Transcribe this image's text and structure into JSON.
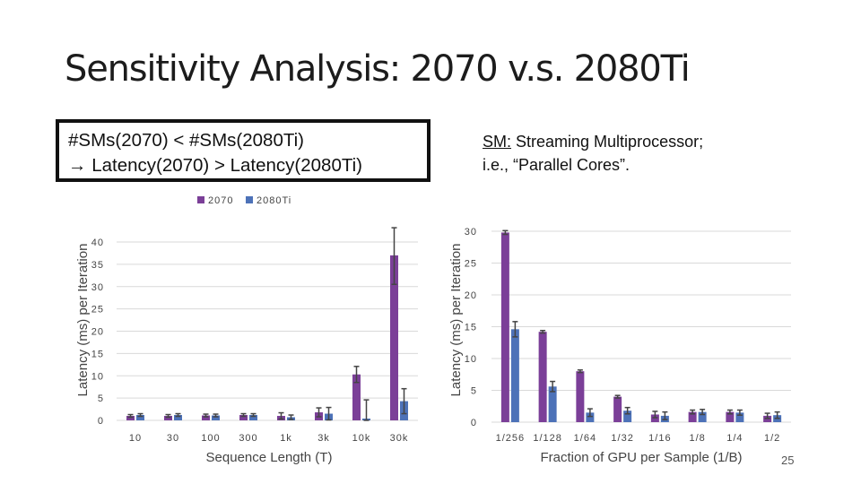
{
  "slide": {
    "title": "Sensitivity Analysis: 2070 v.s. 2080Ti",
    "callout_line1": "#SMs(2070) < #SMs(2080Ti)",
    "callout_line2": "→ Latency(2070) > Latency(2080Ti)",
    "note_term": "SM:",
    "note_rest": " Streaming Multiprocessor;",
    "note_line2": "i.e., “Parallel Cores”.",
    "page_number": "25"
  },
  "colors": {
    "s2070": "#7b3f98",
    "s2080": "#4d72b8",
    "error_bar": "#444444",
    "grid": "#d9d9d9"
  },
  "chart_data": [
    {
      "type": "bar",
      "legend": [
        "2070",
        "2080Ti"
      ],
      "legend_position": "top",
      "categories": [
        "10",
        "30",
        "100",
        "300",
        "1k",
        "3k",
        "10k",
        "30k"
      ],
      "series": [
        {
          "name": "2070",
          "values": [
            1.0,
            1.0,
            1.1,
            1.2,
            1.0,
            1.8,
            10.3,
            37.0
          ],
          "errors": [
            0.3,
            0.3,
            0.3,
            0.3,
            0.7,
            1.0,
            1.8,
            6.5
          ]
        },
        {
          "name": "2080Ti",
          "values": [
            1.2,
            1.2,
            1.1,
            1.2,
            0.7,
            1.5,
            0.4,
            4.3
          ],
          "errors": [
            0.3,
            0.3,
            0.3,
            0.3,
            0.5,
            1.4,
            4.2,
            2.8
          ]
        }
      ],
      "xlabel": "Sequence Length (T)",
      "ylabel": "Latency (ms) per Iteration",
      "ylim": [
        0,
        40
      ],
      "yticks": [
        0,
        5,
        10,
        15,
        20,
        25,
        30,
        35,
        40
      ],
      "grid": true
    },
    {
      "type": "bar",
      "categories": [
        "1/256",
        "1/128",
        "1/64",
        "1/32",
        "1/16",
        "1/8",
        "1/4",
        "1/2"
      ],
      "series": [
        {
          "name": "2070",
          "values": [
            29.8,
            14.2,
            8.0,
            4.0,
            1.2,
            1.6,
            1.6,
            1.0
          ],
          "errors": [
            0.3,
            0.2,
            0.2,
            0.2,
            0.5,
            0.3,
            0.3,
            0.4
          ]
        },
        {
          "name": "2080Ti",
          "values": [
            14.6,
            5.6,
            1.5,
            1.8,
            1.0,
            1.6,
            1.5,
            1.1
          ],
          "errors": [
            1.2,
            0.8,
            0.6,
            0.5,
            0.6,
            0.4,
            0.4,
            0.5
          ]
        }
      ],
      "xlabel": "Fraction of GPU per Sample (1/B)",
      "ylabel": "Latency (ms) per Iteration",
      "ylim": [
        0,
        30
      ],
      "yticks": [
        0,
        5,
        10,
        15,
        20,
        25,
        30
      ],
      "grid": true
    }
  ]
}
